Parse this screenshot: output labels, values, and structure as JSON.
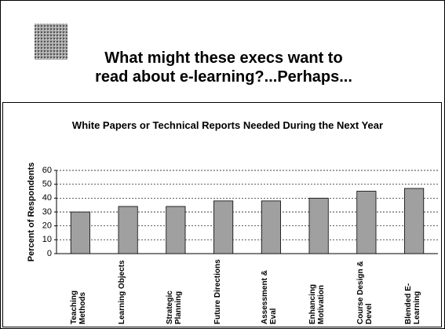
{
  "header": {
    "title": "What might these execs want to read about e-learning?...Perhaps..."
  },
  "chart_data": {
    "type": "bar",
    "title": "White Papers or Technical Reports Needed During the Next Year",
    "y_label": "Percent of Respondents",
    "categories": [
      "Teaching Methods",
      "Learning Objects",
      "Strategic Planning",
      "Future Directions",
      "Assessment & Eval",
      "Enhancing Motivation",
      "Course Design & Devel",
      "Blended E-Learning"
    ],
    "values": [
      30,
      34,
      34,
      38,
      38,
      40,
      45,
      47
    ],
    "color": "#a0a0a0",
    "ylim": [
      0,
      60
    ],
    "yticks": [
      0,
      10,
      20,
      30,
      40,
      50,
      60
    ],
    "grid": true
  }
}
